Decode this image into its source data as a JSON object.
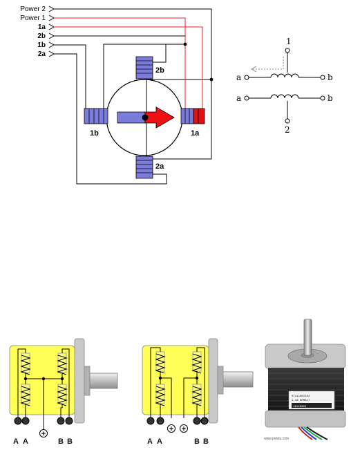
{
  "wiring_diagram": {
    "inputs": [
      "Power 2",
      "Power 1",
      "1a",
      "2b",
      "1b",
      "2a"
    ],
    "coils": [
      "2b",
      "1b",
      "1a",
      "2a"
    ],
    "colors": {
      "power1": "#e02020",
      "wire": "#000000",
      "coil_blue": "#7b7bdc",
      "coil_red": "#dd1111",
      "rotor_arrow": "#ee1111"
    }
  },
  "bifilar_symbol": {
    "top_left": "a",
    "top_right": "b",
    "top_tap": "1",
    "bottom_left": "a",
    "bottom_right": "b",
    "bottom_tap": "2"
  },
  "motor_a": {
    "terminals": [
      "A",
      "A",
      "+",
      "B",
      "B"
    ],
    "colors": {
      "body": "#ffff55",
      "plate": "#c8c8c8"
    }
  },
  "motor_b": {
    "terminals": [
      "A",
      "A",
      "+",
      "+",
      "B",
      "B"
    ]
  },
  "motor_photo": {
    "credit": "www.pololu.com",
    "label_lines": [
      "ST4118M1404",
      "1.4A  NEMA17",
      "18100065"
    ]
  }
}
